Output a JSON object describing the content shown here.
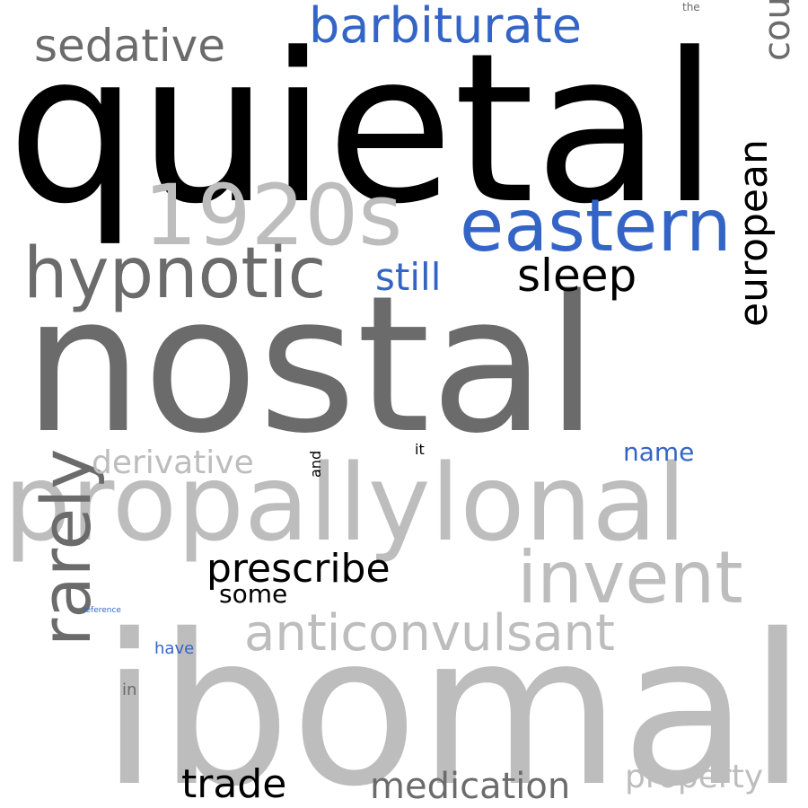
{
  "palette": {
    "black": "#000000",
    "dark_gray": "#6b6b6b",
    "light_gray": "#bdbdbd",
    "blue": "#3465c6"
  },
  "words": [
    {
      "id": "quietal",
      "text": "quietal",
      "color": "black"
    },
    {
      "id": "nostal",
      "text": "nostal",
      "color": "dark_gray"
    },
    {
      "id": "ibomal",
      "text": "ibomal",
      "color": "light_gray"
    },
    {
      "id": "propallylonal",
      "text": "propallylonal",
      "color": "light_gray"
    },
    {
      "id": "1920s",
      "text": "1920s",
      "color": "light_gray"
    },
    {
      "id": "eastern",
      "text": "eastern",
      "color": "blue"
    },
    {
      "id": "hypnotic",
      "text": "hypnotic",
      "color": "dark_gray"
    },
    {
      "id": "barbiturate",
      "text": "barbiturate",
      "color": "blue"
    },
    {
      "id": "sedative",
      "text": "sedative",
      "color": "dark_gray"
    },
    {
      "id": "country",
      "text": "country",
      "color": "dark_gray"
    },
    {
      "id": "european",
      "text": "european",
      "color": "black"
    },
    {
      "id": "invent",
      "text": "invent",
      "color": "light_gray"
    },
    {
      "id": "rarely",
      "text": "rarely",
      "color": "dark_gray"
    },
    {
      "id": "anticonvulsant",
      "text": "anticonvulsant",
      "color": "light_gray"
    },
    {
      "id": "sleep",
      "text": "sleep",
      "color": "black"
    },
    {
      "id": "still",
      "text": "still",
      "color": "blue"
    },
    {
      "id": "prescribe",
      "text": "prescribe",
      "color": "black"
    },
    {
      "id": "trade",
      "text": "trade",
      "color": "black"
    },
    {
      "id": "medication",
      "text": "medication",
      "color": "dark_gray"
    },
    {
      "id": "property",
      "text": "property",
      "color": "light_gray"
    },
    {
      "id": "derivative",
      "text": "derivative",
      "color": "light_gray"
    },
    {
      "id": "name",
      "text": "name",
      "color": "blue"
    },
    {
      "id": "some",
      "text": "some",
      "color": "black"
    },
    {
      "id": "have",
      "text": "have",
      "color": "blue"
    },
    {
      "id": "in",
      "text": "in",
      "color": "dark_gray"
    },
    {
      "id": "and",
      "text": "and",
      "color": "black"
    },
    {
      "id": "it",
      "text": "it",
      "color": "black"
    },
    {
      "id": "the",
      "text": "the",
      "color": "dark_gray"
    },
    {
      "id": "reference",
      "text": "reference",
      "color": "blue"
    }
  ]
}
